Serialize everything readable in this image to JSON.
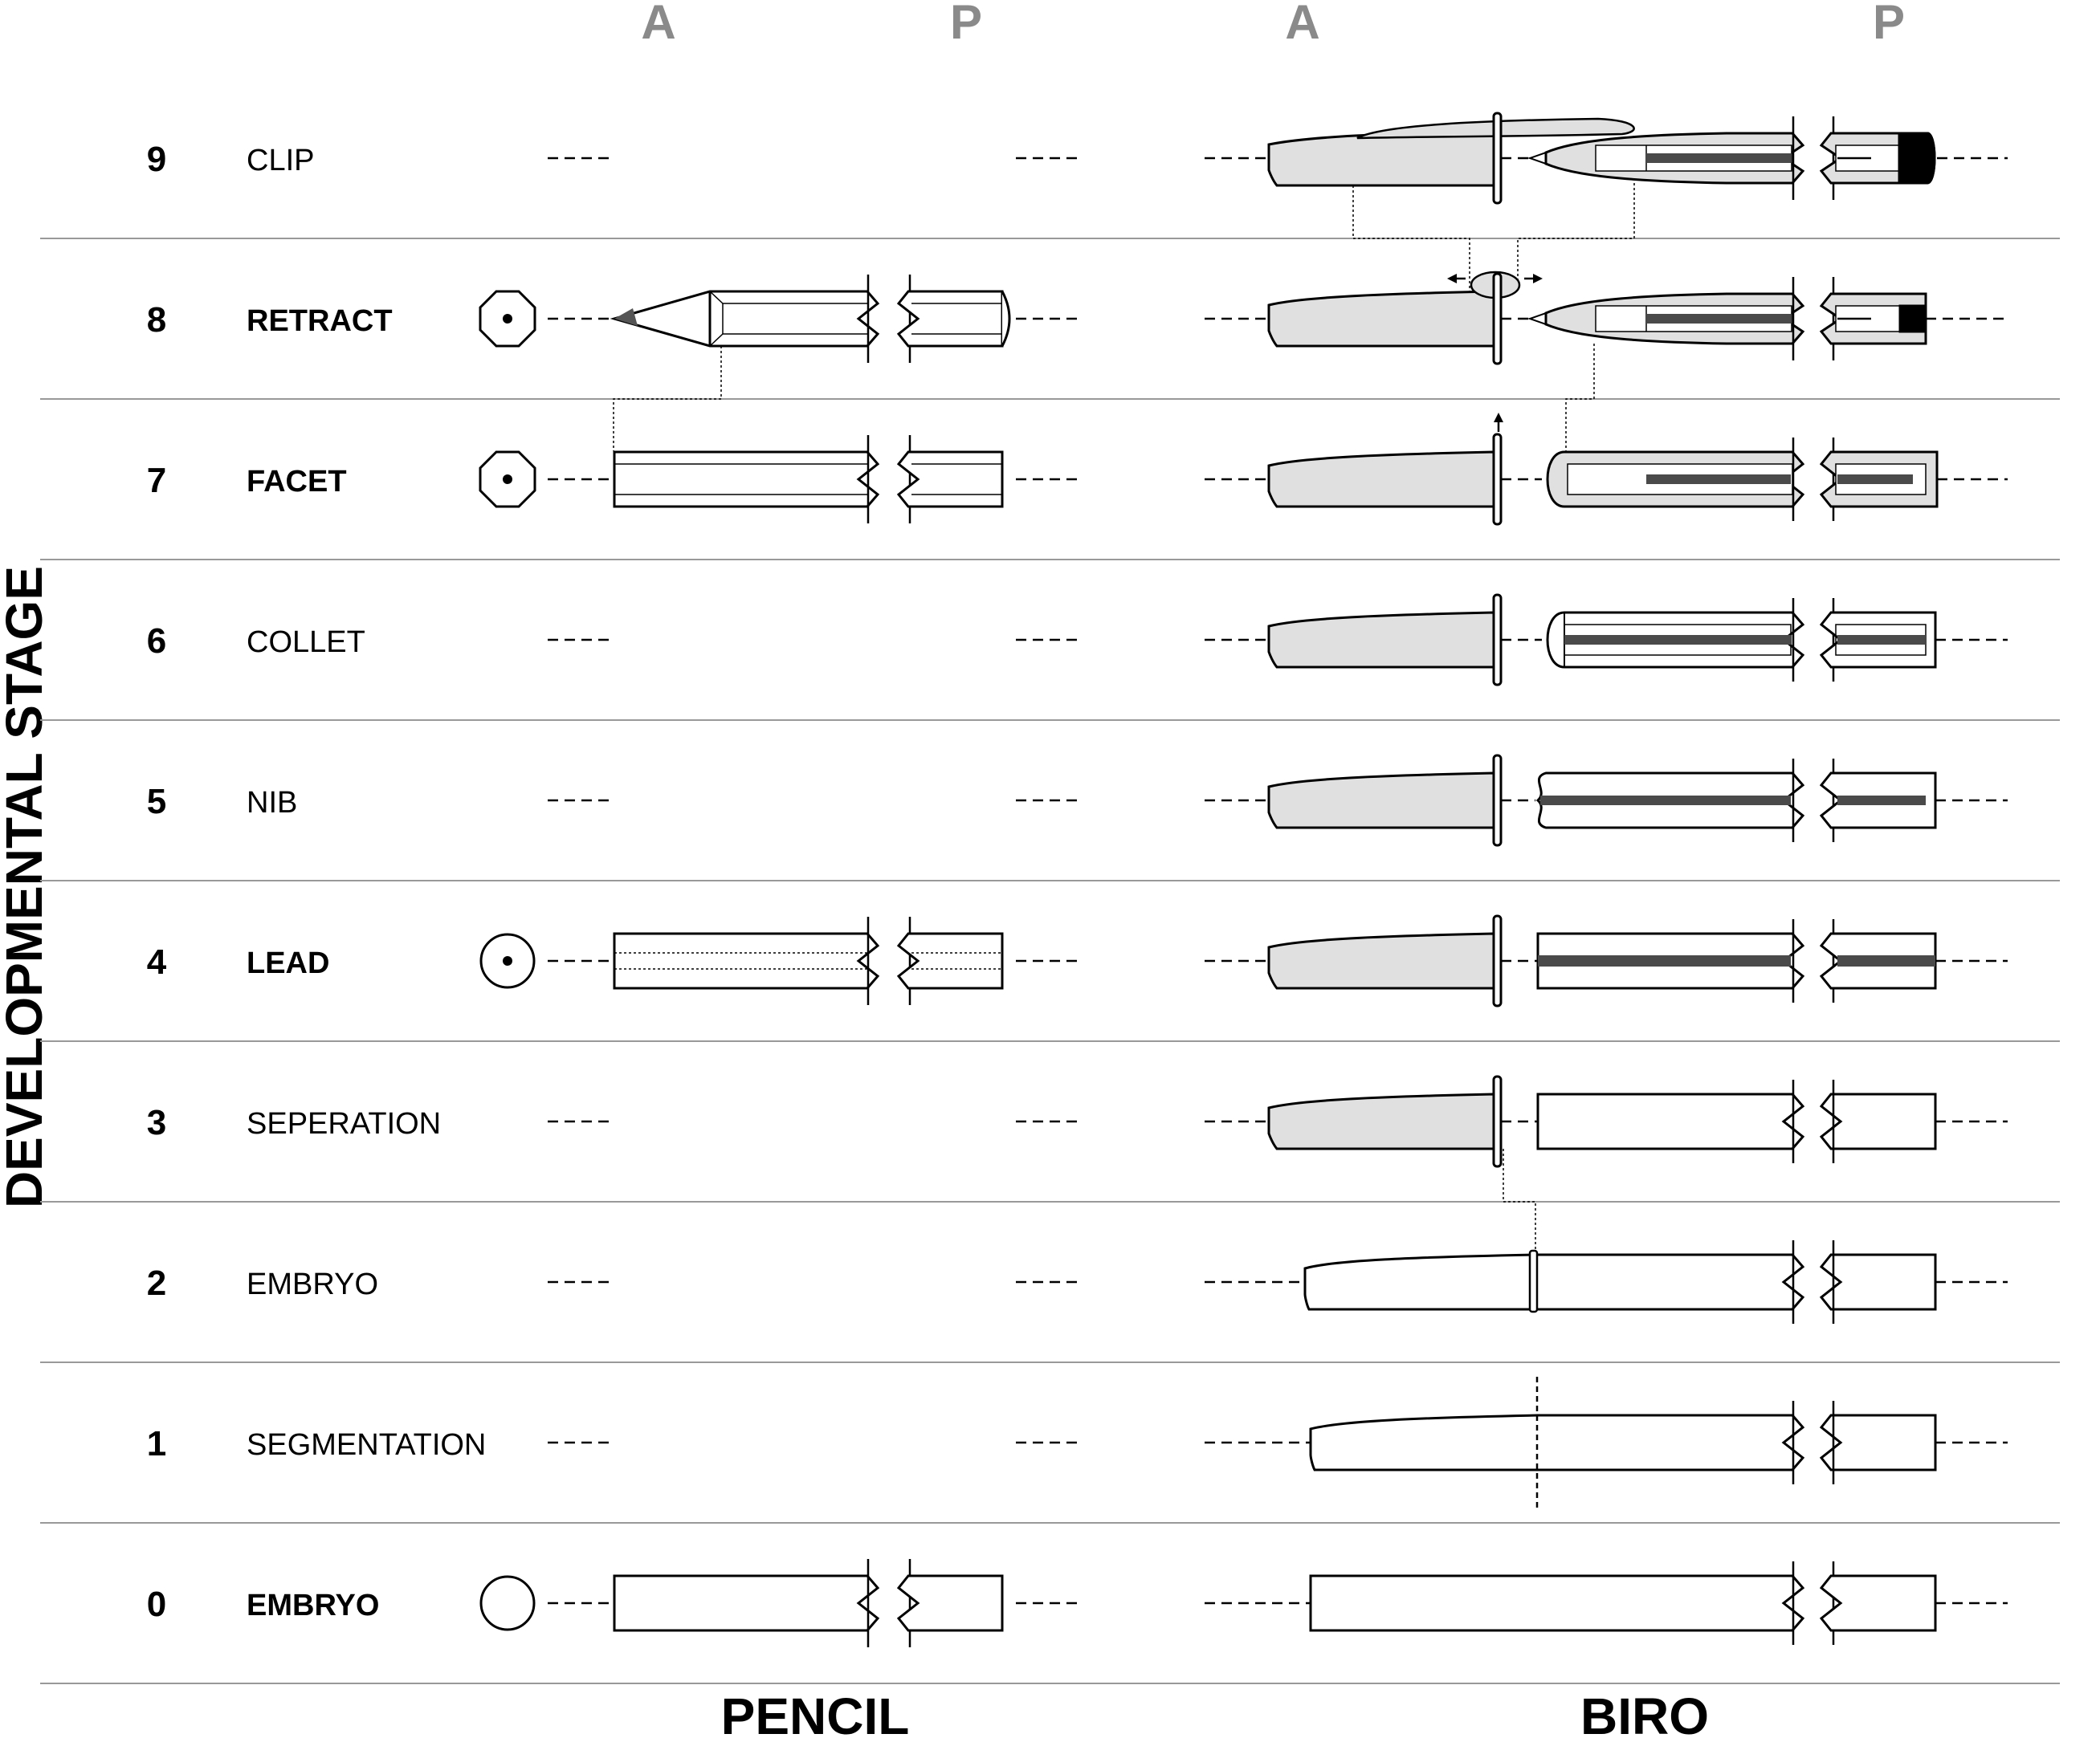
{
  "axis": {
    "vertical_label": "DEVELOPMENTAL STAGE",
    "anterior": "A",
    "posterior": "P"
  },
  "columns": {
    "pencil": "PENCIL",
    "biro": "BIRO"
  },
  "stages": [
    {
      "number": "9",
      "name": "CLIP",
      "emphasis": "normal"
    },
    {
      "number": "8",
      "name": "RETRACT",
      "emphasis": "bold"
    },
    {
      "number": "7",
      "name": "FACET",
      "emphasis": "bold"
    },
    {
      "number": "6",
      "name": "COLLET",
      "emphasis": "normal"
    },
    {
      "number": "5",
      "name": "NIB",
      "emphasis": "normal"
    },
    {
      "number": "4",
      "name": "LEAD",
      "emphasis": "bold"
    },
    {
      "number": "3",
      "name": "SEPERATION",
      "emphasis": "normal"
    },
    {
      "number": "2",
      "name": "EMBRYO",
      "emphasis": "normal"
    },
    {
      "number": "1",
      "name": "SEGMENTATION",
      "emphasis": "normal"
    },
    {
      "number": "0",
      "name": "EMBRYO",
      "emphasis": "bold"
    }
  ],
  "colors": {
    "line": "#000000",
    "divider": "#999999",
    "axis_letter": "#8a8a8a",
    "cap_fill": "#e0e0e0",
    "ink_core": "#4a4a4a"
  }
}
